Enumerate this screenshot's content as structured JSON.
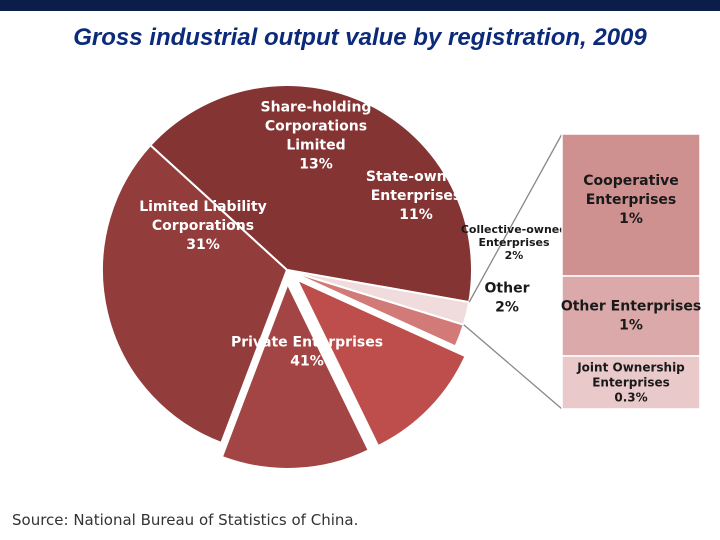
{
  "title": "Gross industrial output value by registration, 2009",
  "source": "Source: National Bureau of Statistics of China.",
  "chart_data": {
    "type": "pie",
    "title": "Gross industrial output value by registration, 2009",
    "slices": [
      {
        "label": [
          "Private Enterprises",
          "41%"
        ],
        "value": 41,
        "color": "#833433",
        "text_color": "#ffffff"
      },
      {
        "label": [
          "Limited Liability",
          "Corporations",
          "31%"
        ],
        "value": 31,
        "color": "#923c3b",
        "text_color": "#ffffff"
      },
      {
        "label": [
          "Share-holding",
          "Corporations",
          "Limited",
          "13%"
        ],
        "value": 13,
        "color": "#a24544",
        "text_color": "#ffffff",
        "exploded": true
      },
      {
        "label": [
          "State-owned",
          "Enterprises",
          "11%"
        ],
        "value": 11,
        "color": "#bd4e4c",
        "text_color": "#ffffff",
        "exploded": true
      },
      {
        "label": [
          "Collective-owned",
          "Enterprises",
          "2%"
        ],
        "value": 2,
        "color": "#d27a78",
        "text_color": "#1a1a1a"
      },
      {
        "label": [
          "Other",
          "2%"
        ],
        "value": 2,
        "color": "#f0dcdc",
        "text_color": "#1a1a1a"
      }
    ],
    "breakdown": {
      "of": "Other",
      "items": [
        {
          "label": [
            "Cooperative",
            "Enterprises",
            "1%"
          ],
          "value": 1,
          "color": "#cf9090"
        },
        {
          "label": [
            "Other Enterprises",
            "1%"
          ],
          "value": 1,
          "color": "#dba9a9"
        },
        {
          "label": [
            "Joint Ownership",
            "Enterprises",
            "0.3%"
          ],
          "value": 0.3,
          "color": "#e9c9c9"
        }
      ]
    }
  }
}
